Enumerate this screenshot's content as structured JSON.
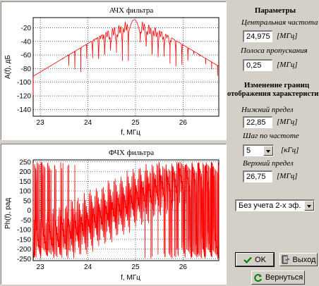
{
  "plot1": {
    "title": "АЧХ фильтра",
    "ylabel": "A(f), дБ",
    "xlabel": "f, МГц",
    "xticks": [
      "23",
      "24",
      "25",
      "26"
    ],
    "yticks": [
      "-20",
      "-40",
      "-60",
      "-80",
      "-100",
      "-120",
      "-140"
    ],
    "line_color": "#ff0000"
  },
  "plot2": {
    "title": "ФЧХ фильтра",
    "ylabel": "Ph(f), рад",
    "xlabel": "f, МГц",
    "xticks": [
      "23",
      "24",
      "25",
      "26"
    ],
    "yticks": [
      "250",
      "200",
      "150",
      "100",
      "50",
      "0",
      "-50",
      "-100",
      "-150",
      "-200",
      "-250"
    ],
    "line_color": "#ff0000"
  },
  "params": {
    "header": "Параметры",
    "center_label": "Центральная частота",
    "center_value": "24,975",
    "center_unit": "[МГц]",
    "band_label": "Полоса пропускания",
    "band_value": "0,25",
    "band_unit": "[МГц]"
  },
  "range": {
    "header_line1": "Изменение границ",
    "header_line2": "отображения характеристик",
    "lower_label": "Нижний предел",
    "lower_value": "22,85",
    "lower_unit": "[МГц]",
    "step_label": "Шаг по частоте",
    "step_value": "5",
    "step_unit": "[кГц]",
    "upper_label": "Верхний предел",
    "upper_value": "26,75",
    "upper_unit": "[МГц]"
  },
  "mode_select": {
    "value": "Без учета 2-х эф."
  },
  "buttons": {
    "ok": "OK",
    "exit": "Выход",
    "back": "Вернуться"
  },
  "chart_data": [
    {
      "type": "line",
      "title": "АЧХ фильтра",
      "xlabel": "f, МГц",
      "ylabel": "A(f), дБ",
      "xlim": [
        22.85,
        26.75
      ],
      "ylim": [
        -150,
        -5
      ],
      "grid": true,
      "series": [
        {
          "peak_x": 24.975,
          "peak_y": -8
        }
      ]
    },
    {
      "type": "line",
      "title": "ФЧХ фильтра",
      "xlabel": "f, МГц",
      "ylabel": "Ph(f), рад",
      "xlim": [
        22.85,
        26.75
      ],
      "ylim": [
        -260,
        260
      ],
      "grid": true,
      "series": [
        {
          "range": [
            -250,
            250
          ]
        }
      ]
    }
  ]
}
